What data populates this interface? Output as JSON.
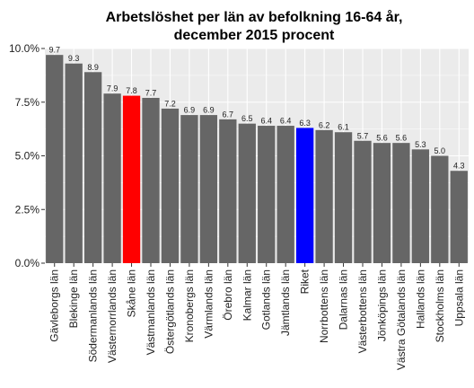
{
  "chart_data": {
    "type": "bar",
    "title": "Arbetslöshet per län av befolkning 16-64 år,",
    "subtitle": "december 2015 procent",
    "xlabel": "",
    "ylabel": "",
    "ylim": [
      0,
      10
    ],
    "yticks": [
      "0.0%",
      "2.5%",
      "5.0%",
      "7.5%",
      "10.0%"
    ],
    "ytick_values": [
      0,
      2.5,
      5,
      7.5,
      10
    ],
    "grid": true,
    "legend": "none",
    "categories": [
      "Gävleborgs län",
      "Blekinge län",
      "Södermanlands län",
      "Västernorrlands län",
      "Skåne län",
      "Västmanlands län",
      "Östergötlands län",
      "Kronobergs län",
      "Värmlands län",
      "Örebro län",
      "Kalmar län",
      "Gotlands län",
      "Jämtlands län",
      "Riket",
      "Norrbottens län",
      "Dalarnas län",
      "Västerbottens län",
      "Jönköpings län",
      "Västra Götalands län",
      "Hallands län",
      "Stockholms län",
      "Uppsala län"
    ],
    "values": [
      9.7,
      9.3,
      8.9,
      7.9,
      7.8,
      7.7,
      7.2,
      6.9,
      6.9,
      6.7,
      6.5,
      6.4,
      6.4,
      6.3,
      6.2,
      6.1,
      5.7,
      5.6,
      5.6,
      5.3,
      5.0,
      4.3
    ],
    "value_labels": [
      "9.7",
      "9.3",
      "8.9",
      "7.9",
      "7.8",
      "7.7",
      "7.2",
      "6.9",
      "6.9",
      "6.7",
      "6.5",
      "6.4",
      "6.4",
      "6.3",
      "6.2",
      "6.1",
      "5.7",
      "5.6",
      "5.6",
      "5.3",
      "5.0",
      "4.3"
    ],
    "colors": {
      "default": "#666666",
      "highlight": {
        "Skåne län": "#ff0000",
        "Riket": "#0000ff"
      },
      "panel_background": "#ebebeb",
      "grid": "#ffffff"
    }
  }
}
